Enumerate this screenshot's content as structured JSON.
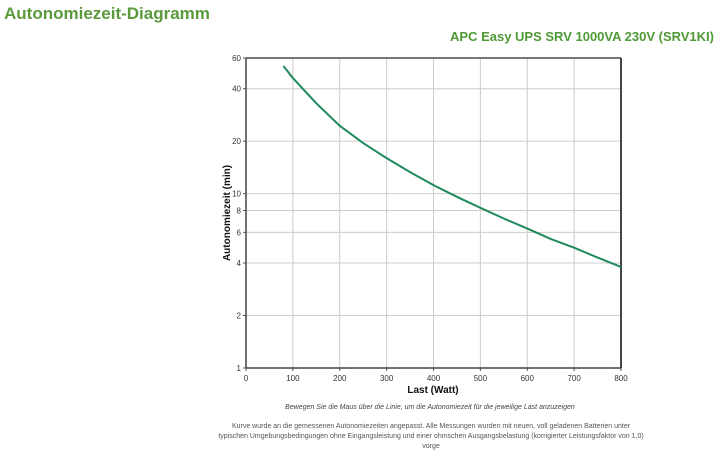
{
  "page": {
    "title": "Autonomiezeit-Diagramm",
    "product": "APC Easy UPS SRV 1000VA 230V (SRV1KI)",
    "hint": "Bewegen Sie die Maus über die Linie, um die Autonomiezeit für die jeweilige Last anzuzeigen",
    "note": "Kurve wurde an die gemessenen Autonomiezeiten angepasst. Alle Messungen wurden mit neuen, voll geladenen Batterien unter typischen Umgebungsbedingungen ohne Eingangsleistung und einer ohmschen Ausgangsbelastung (korrigierter Leistungsfaktor von 1,0) vorge"
  },
  "colors": {
    "title": "#5a9a3c",
    "curve": "#1f8a5c",
    "grid": "#cccccc",
    "axis": "#555555"
  },
  "chart_data": {
    "type": "line",
    "title": "APC Easy UPS SRV 1000VA 230V (SRV1KI)",
    "xlabel": "Last (Watt)",
    "ylabel": "Autonomiezeit (min)",
    "xlim": [
      0,
      800
    ],
    "ylim": [
      1,
      60
    ],
    "yscale": "log",
    "grid": true,
    "legend": "none",
    "x_ticks": [
      0,
      100,
      200,
      300,
      400,
      500,
      600,
      700,
      800
    ],
    "y_ticks": [
      1,
      2,
      4,
      6,
      8,
      10,
      20,
      40,
      60
    ],
    "series": [
      {
        "name": "Autonomiezeit",
        "x": [
          80,
          100,
          150,
          200,
          250,
          300,
          350,
          400,
          450,
          500,
          550,
          600,
          650,
          700,
          750,
          800
        ],
        "y": [
          54,
          46,
          33,
          24.5,
          19.5,
          16,
          13.3,
          11.2,
          9.6,
          8.3,
          7.2,
          6.3,
          5.5,
          4.9,
          4.3,
          3.8
        ]
      }
    ]
  }
}
